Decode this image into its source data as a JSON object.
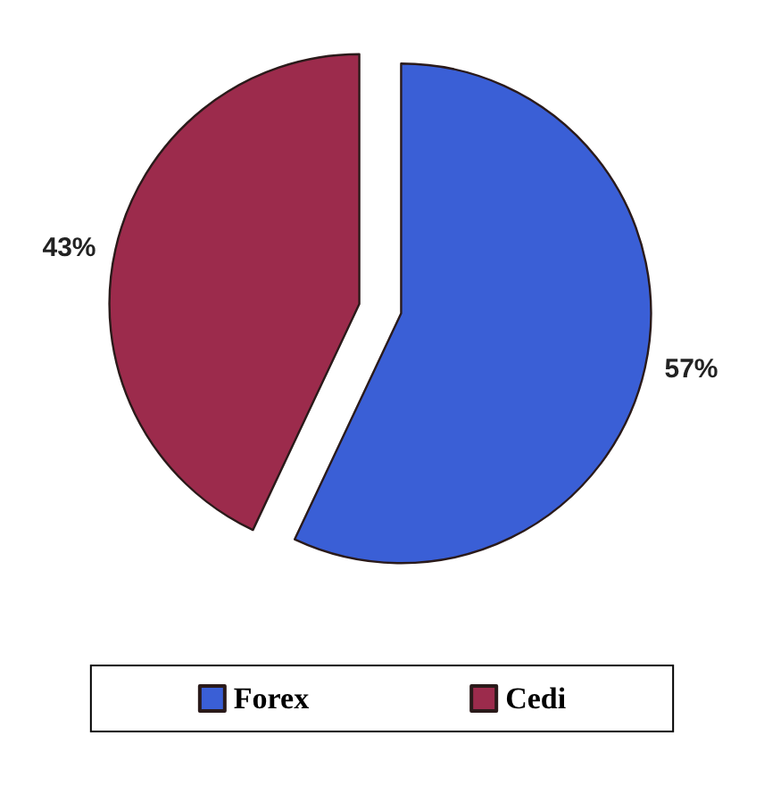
{
  "chart_data": {
    "type": "pie",
    "categories": [
      "Forex",
      "Cedi"
    ],
    "values": [
      57,
      43
    ],
    "colors": [
      "#3a5fd6",
      "#9c2b4c"
    ],
    "value_labels": [
      "57%",
      "43%"
    ],
    "legend": "bottom"
  }
}
